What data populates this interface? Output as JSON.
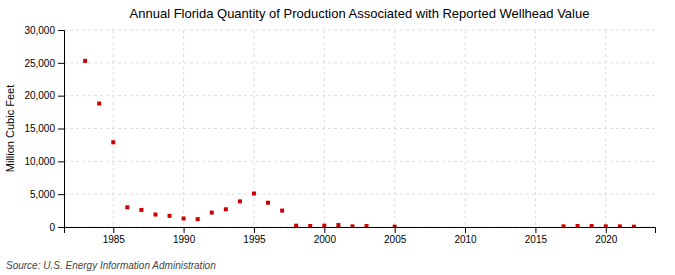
{
  "chart_data": {
    "type": "scatter",
    "title": "Annual Florida Quantity of Production Associated with Reported Wellhead Value",
    "ylabel": "Million Cubic Feet",
    "source": "Source: U.S. Energy Information Administration",
    "x": [
      1983,
      1984,
      1985,
      1986,
      1987,
      1988,
      1989,
      1990,
      1991,
      1992,
      1993,
      1994,
      1995,
      1996,
      1997,
      1998,
      1999,
      2000,
      2001,
      2002,
      2003,
      2005,
      2017,
      2018,
      2019,
      2020,
      2021,
      2022
    ],
    "values": [
      25300,
      18800,
      12900,
      3000,
      2600,
      1900,
      1700,
      1300,
      1200,
      2200,
      2700,
      3900,
      5100,
      3700,
      2500,
      200,
      150,
      200,
      300,
      100,
      150,
      50,
      100,
      150,
      150,
      100,
      100,
      50
    ],
    "color": "#cc0000",
    "marker": "square",
    "grid": true,
    "xlim": [
      1981.5,
      2023.5
    ],
    "xticks": [
      1985,
      1990,
      1995,
      2000,
      2005,
      2010,
      2015,
      2020
    ],
    "ylim": [
      0,
      30000
    ],
    "yticks": [
      0,
      {
        "value": 5000,
        "label": "5,000"
      },
      {
        "value": 10000,
        "label": "10,000"
      },
      {
        "value": 15000,
        "label": "15,000"
      },
      {
        "value": 20000,
        "label": "20,000"
      },
      {
        "value": 25000,
        "label": "25,000"
      },
      {
        "value": 30000,
        "label": "30,000"
      }
    ]
  }
}
